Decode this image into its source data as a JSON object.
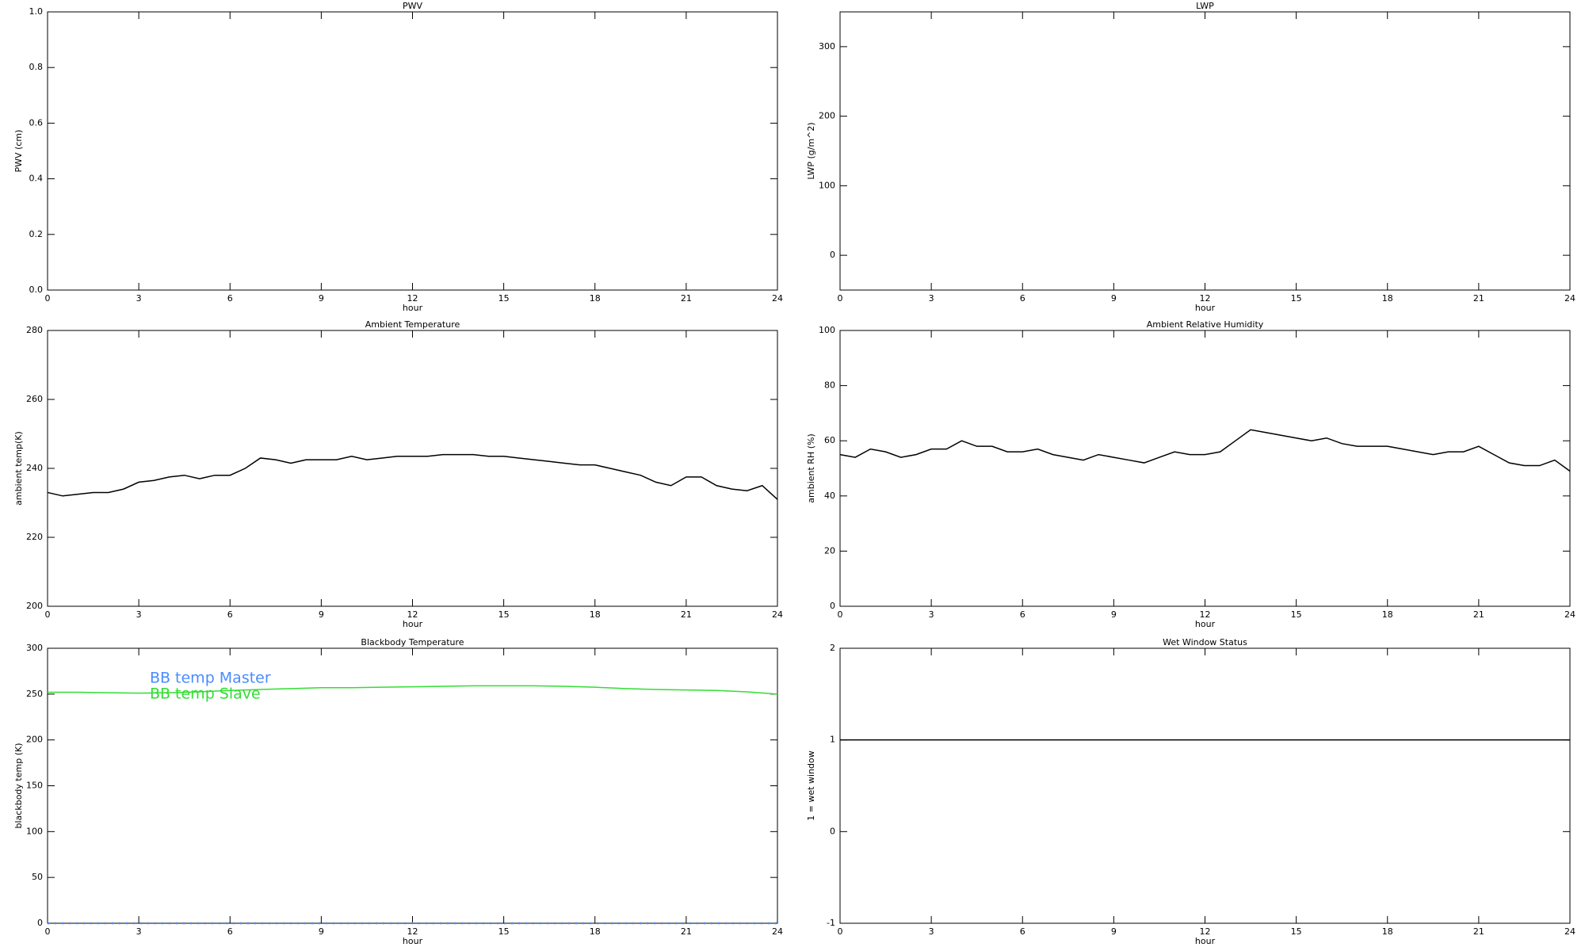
{
  "chart_data": [
    {
      "type": "line",
      "title": "PWV",
      "xlabel": "hour",
      "ylabel": "PWV (cm)",
      "xlim": [
        0,
        24
      ],
      "xticks": [
        0,
        3,
        6,
        9,
        12,
        15,
        18,
        21,
        24
      ],
      "ylim": [
        0,
        1
      ],
      "yticks": [
        {
          "value": 0,
          "label": "0.0"
        },
        {
          "value": 0.2,
          "label": "0.2"
        },
        {
          "value": 0.4,
          "label": "0.4"
        },
        {
          "value": 0.6,
          "label": "0.6"
        },
        {
          "value": 0.8,
          "label": "0.8"
        },
        {
          "value": 1,
          "label": "1.0"
        }
      ],
      "series": []
    },
    {
      "type": "line",
      "title": "LWP",
      "xlabel": "hour",
      "ylabel": "LWP (g/m^2)",
      "xlim": [
        0,
        24
      ],
      "xticks": [
        0,
        3,
        6,
        9,
        12,
        15,
        18,
        21,
        24
      ],
      "ylim": [
        -50,
        350
      ],
      "yticks": [
        0,
        100,
        200,
        300
      ],
      "series": []
    },
    {
      "type": "line",
      "title": "Ambient Temperature",
      "xlabel": "hour",
      "ylabel": "ambient temp(K)",
      "xlim": [
        0,
        24
      ],
      "xticks": [
        0,
        3,
        6,
        9,
        12,
        15,
        18,
        21,
        24
      ],
      "ylim": [
        200,
        280
      ],
      "yticks": [
        200,
        220,
        240,
        260,
        280
      ],
      "x": [
        0,
        0.5,
        1,
        1.5,
        2,
        2.5,
        3,
        3.5,
        4,
        4.5,
        5,
        5.5,
        6,
        6.5,
        7,
        7.5,
        8,
        8.5,
        9,
        9.5,
        10,
        10.5,
        11,
        11.5,
        12,
        12.5,
        13,
        13.5,
        14,
        14.5,
        15,
        15.5,
        16,
        16.5,
        17,
        17.5,
        18,
        18.5,
        19,
        19.5,
        20,
        20.5,
        21,
        21.5,
        22,
        22.5,
        23,
        23.5,
        24
      ],
      "series": [
        {
          "color": "#000000",
          "values": [
            233,
            232,
            232.5,
            233,
            233,
            234,
            236,
            236.5,
            237.5,
            238,
            237,
            238,
            238,
            240,
            243,
            242.5,
            241.5,
            242.5,
            242.5,
            242.5,
            243.5,
            242.5,
            243,
            243.5,
            243.5,
            243.5,
            244,
            244,
            244,
            243.5,
            243.5,
            243,
            242.5,
            242,
            241.5,
            241,
            241,
            240,
            239,
            238,
            236,
            235,
            237.5,
            237.5,
            235,
            234,
            233.5,
            235,
            231
          ]
        }
      ]
    },
    {
      "type": "line",
      "title": "Ambient Relative Humidity",
      "xlabel": "hour",
      "ylabel": "ambient RH (%)",
      "xlim": [
        0,
        24
      ],
      "xticks": [
        0,
        3,
        6,
        9,
        12,
        15,
        18,
        21,
        24
      ],
      "ylim": [
        0,
        100
      ],
      "yticks": [
        0,
        20,
        40,
        60,
        80,
        100
      ],
      "x": [
        0,
        0.5,
        1,
        1.5,
        2,
        2.5,
        3,
        3.5,
        4,
        4.5,
        5,
        5.5,
        6,
        6.5,
        7,
        7.5,
        8,
        8.5,
        9,
        9.5,
        10,
        10.5,
        11,
        11.5,
        12,
        12.5,
        13,
        13.5,
        14,
        14.5,
        15,
        15.5,
        16,
        16.5,
        17,
        17.5,
        18,
        18.5,
        19,
        19.5,
        20,
        20.5,
        21,
        21.5,
        22,
        22.5,
        23,
        23.5,
        24
      ],
      "series": [
        {
          "color": "#000000",
          "values": [
            55,
            54,
            57,
            56,
            54,
            55,
            57,
            57,
            60,
            58,
            58,
            56,
            56,
            57,
            55,
            54,
            53,
            55,
            54,
            53,
            52,
            54,
            56,
            55,
            55,
            56,
            60,
            64,
            63,
            62,
            61,
            60,
            61,
            59,
            58,
            58,
            58,
            57,
            56,
            55,
            56,
            56,
            58,
            55,
            52,
            51,
            51,
            53,
            49
          ]
        }
      ]
    },
    {
      "type": "line",
      "title": "Blackbody Temperature",
      "xlabel": "hour",
      "ylabel": "blackbody temp (K)",
      "xlim": [
        0,
        24
      ],
      "xticks": [
        0,
        3,
        6,
        9,
        12,
        15,
        18,
        21,
        24
      ],
      "ylim": [
        0,
        300
      ],
      "yticks": [
        0,
        50,
        100,
        150,
        200,
        250,
        300
      ],
      "legend": "upper left",
      "x": [
        0,
        1,
        2,
        3,
        4,
        5,
        6,
        7,
        8,
        9,
        10,
        11,
        12,
        13,
        14,
        15,
        16,
        17,
        18,
        19,
        20,
        21,
        22,
        23,
        24
      ],
      "series": [
        {
          "name": "BB temp Master",
          "color": "#4a8cff",
          "values": [
            0,
            0,
            0,
            0,
            0,
            0,
            0,
            0,
            0,
            0,
            0,
            0,
            0,
            0,
            0,
            0,
            0,
            0,
            0,
            0,
            0,
            0,
            0,
            0,
            0
          ]
        },
        {
          "name": "BB temp Slave",
          "color": "#33dd33",
          "values": [
            252,
            252,
            251.5,
            251,
            251.5,
            252.5,
            254,
            255,
            256,
            257,
            257,
            257.5,
            258,
            258.5,
            259,
            259,
            259,
            258.5,
            257.5,
            256,
            255,
            254.5,
            254,
            252.5,
            250
          ]
        }
      ]
    },
    {
      "type": "line",
      "title": "Wet Window Status",
      "xlabel": "hour",
      "ylabel": "1 = wet window",
      "xlim": [
        0,
        24
      ],
      "xticks": [
        0,
        3,
        6,
        9,
        12,
        15,
        18,
        21,
        24
      ],
      "ylim": [
        -1,
        2
      ],
      "yticks": [
        -1,
        0,
        1,
        2
      ],
      "x": [
        0,
        24
      ],
      "series": [
        {
          "color": "#000000",
          "values": [
            1,
            1
          ]
        }
      ]
    }
  ]
}
